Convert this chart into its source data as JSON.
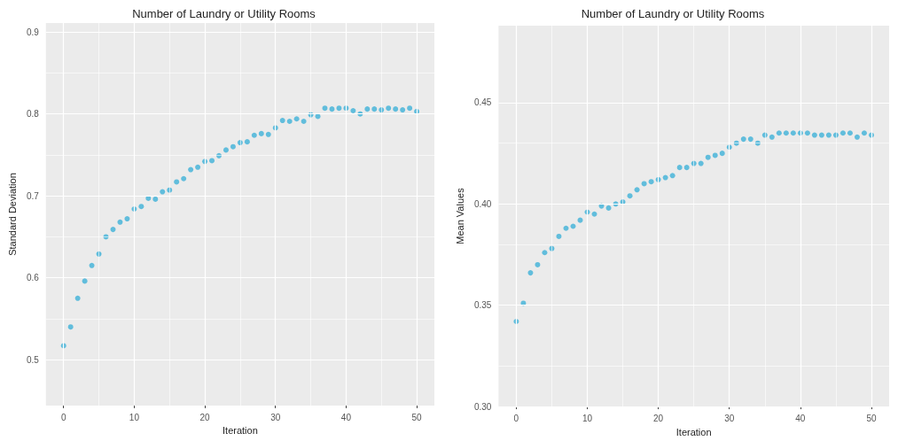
{
  "chart_data": [
    {
      "type": "scatter",
      "title": "Number of Laundry or Utility Rooms",
      "xlabel": "Iteration",
      "ylabel": "Standard Deviation",
      "marker": "circle",
      "grid": true,
      "x": [
        0,
        1,
        2,
        3,
        4,
        5,
        6,
        7,
        8,
        9,
        10,
        11,
        12,
        13,
        14,
        15,
        16,
        17,
        18,
        19,
        20,
        21,
        22,
        23,
        24,
        25,
        26,
        27,
        28,
        29,
        30,
        31,
        32,
        33,
        34,
        35,
        36,
        37,
        38,
        39,
        40,
        41,
        42,
        43,
        44,
        45,
        46,
        47,
        48,
        49,
        50
      ],
      "series": [
        {
          "color": "#3fb1d8",
          "values": [
            0.517,
            0.54,
            0.575,
            0.596,
            0.615,
            0.629,
            0.65,
            0.659,
            0.668,
            0.672,
            0.684,
            0.687,
            0.697,
            0.696,
            0.705,
            0.707,
            0.717,
            0.721,
            0.732,
            0.735,
            0.742,
            0.743,
            0.749,
            0.756,
            0.76,
            0.765,
            0.766,
            0.774,
            0.776,
            0.775,
            0.783,
            0.792,
            0.791,
            0.794,
            0.791,
            0.799,
            0.797,
            0.807,
            0.806,
            0.807,
            0.807,
            0.804,
            0.8,
            0.806,
            0.806,
            0.805,
            0.807,
            0.806,
            0.805,
            0.807,
            0.803
          ]
        }
      ],
      "xlim": [
        -2.5,
        52.5
      ],
      "xticks": [
        0,
        10,
        20,
        30,
        40,
        50
      ],
      "ylim": [
        0.444,
        0.911
      ],
      "yticks": [
        0.5,
        0.6,
        0.7,
        0.8,
        0.9
      ]
    },
    {
      "type": "scatter",
      "title": "Number of Laundry or Utility Rooms",
      "xlabel": "Iteration",
      "ylabel": "Mean Values",
      "marker": "circle",
      "grid": true,
      "x": [
        0,
        1,
        2,
        3,
        4,
        5,
        6,
        7,
        8,
        9,
        10,
        11,
        12,
        13,
        14,
        15,
        16,
        17,
        18,
        19,
        20,
        21,
        22,
        23,
        24,
        25,
        26,
        27,
        28,
        29,
        30,
        31,
        32,
        33,
        34,
        35,
        36,
        37,
        38,
        39,
        40,
        41,
        42,
        43,
        44,
        45,
        46,
        47,
        48,
        49,
        50
      ],
      "series": [
        {
          "color": "#3fb1d8",
          "values": [
            0.342,
            0.351,
            0.366,
            0.37,
            0.376,
            0.378,
            0.384,
            0.388,
            0.389,
            0.392,
            0.396,
            0.395,
            0.399,
            0.398,
            0.4,
            0.401,
            0.404,
            0.407,
            0.41,
            0.411,
            0.412,
            0.413,
            0.414,
            0.418,
            0.418,
            0.42,
            0.42,
            0.423,
            0.424,
            0.425,
            0.428,
            0.43,
            0.432,
            0.432,
            0.43,
            0.434,
            0.433,
            0.435,
            0.435,
            0.435,
            0.435,
            0.435,
            0.434,
            0.434,
            0.434,
            0.434,
            0.435,
            0.435,
            0.433,
            0.435,
            0.434
          ]
        }
      ],
      "xlim": [
        -2.5,
        52.5
      ],
      "xticks": [
        0,
        10,
        20,
        30,
        40,
        50
      ],
      "ylim": [
        0.3,
        0.488
      ],
      "yticks": [
        {
          "value": 0.3,
          "label": "0.30"
        },
        0.35,
        {
          "value": 0.4,
          "label": "0.40"
        },
        0.45
      ]
    }
  ]
}
